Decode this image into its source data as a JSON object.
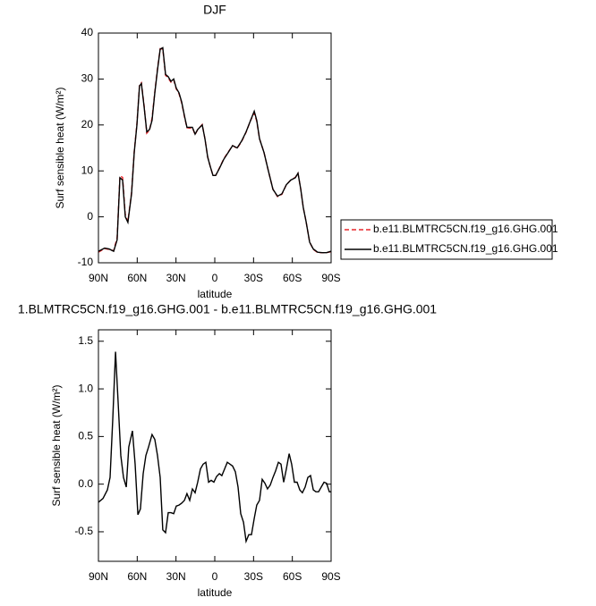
{
  "chart_data": [
    {
      "type": "line",
      "title": "DJF",
      "xlabel": "latitude",
      "ylabel": "Surf sensible heat (W/m²)",
      "xlim": [
        90,
        -90
      ],
      "ylim": [
        -10,
        40
      ],
      "xticks": [
        {
          "value": 90,
          "label": "90N"
        },
        {
          "value": 60,
          "label": "60N"
        },
        {
          "value": 30,
          "label": "30N"
        },
        0,
        {
          "value": -30,
          "label": "30S"
        },
        {
          "value": -60,
          "label": "60S"
        },
        {
          "value": -90,
          "label": "90S"
        }
      ],
      "yticks": [
        -10,
        0,
        10,
        20,
        30,
        40
      ],
      "x": [
        90,
        85.2,
        81.7,
        78.2,
        75.5,
        73.4,
        71.3,
        69.2,
        67.2,
        64.4,
        62.3,
        60.2,
        58.2,
        56.8,
        54.7,
        52.6,
        50.5,
        48.5,
        46.4,
        44.3,
        42.2,
        40.2,
        38.1,
        36,
        33.9,
        31.8,
        29.8,
        27.7,
        25.6,
        23.5,
        21.5,
        19.4,
        17.3,
        15.2,
        13.2,
        9.7,
        7.6,
        5.5,
        3.5,
        1.4,
        -0.7,
        -3.5,
        -6.9,
        -10.4,
        -13.8,
        -17.3,
        -20.8,
        -24.2,
        -27.7,
        -30.5,
        -32.5,
        -34.6,
        -38.1,
        -41.5,
        -45,
        -48.5,
        -51.9,
        -55.4,
        -58.8,
        -62.3,
        -64.4,
        -66.5,
        -68.5,
        -70.6,
        -73.4,
        -76.2,
        -79.6,
        -83.1,
        -86.5,
        -90
      ],
      "series": [
        {
          "name": "b.e11.BLMTRC5CN.f19_g16.GHG.001",
          "color": "#e8262c",
          "dash": true,
          "values": [
            -7.7,
            -6.9,
            -7.1,
            -7.4,
            -4.5,
            8.9,
            8.6,
            0.5,
            -1,
            5.3,
            14.2,
            20.3,
            28.8,
            29.2,
            24.3,
            18.2,
            18.9,
            21.5,
            27.2,
            32.3,
            36.6,
            36.5,
            30.8,
            30.2,
            29.3,
            29.8,
            27.8,
            26.8,
            24.8,
            21.8,
            19.4,
            19.3,
            19.4,
            17.9,
            19,
            20.1,
            17,
            13,
            11,
            9,
            9,
            10.6,
            12.6,
            14.1,
            15.5,
            14.9,
            16.4,
            18.4,
            21,
            22.6,
            20.8,
            17,
            14,
            10,
            6,
            4.4,
            4.9,
            7,
            8,
            8.6,
            9.5,
            6,
            2,
            -1,
            -5.5,
            -7.1,
            -7.8,
            -7.8,
            -7.8,
            -7.6
          ]
        },
        {
          "name": "b.e11.BLMTRC5CN.f19_g16.GHG.001",
          "color": "#000000",
          "dash": false,
          "values": [
            -7.5,
            -6.8,
            -7,
            -7.5,
            -5,
            8.5,
            8,
            0,
            -1.2,
            5,
            14,
            20,
            28.5,
            29,
            24,
            18.5,
            19,
            21,
            27,
            32,
            36.5,
            36.8,
            31,
            30.5,
            29.5,
            30,
            28,
            27,
            25,
            22,
            19.5,
            19.5,
            19.5,
            18,
            19,
            20,
            17,
            13,
            11,
            9,
            9,
            10.5,
            12.5,
            14,
            15.5,
            15,
            16.5,
            18.5,
            21,
            23,
            21,
            17,
            14,
            10,
            6,
            4.5,
            5,
            7,
            8,
            8.5,
            9.5,
            6,
            2,
            -1,
            -5.5,
            -7,
            -7.7,
            -7.8,
            -7.8,
            -7.5
          ]
        }
      ]
    },
    {
      "type": "line",
      "title": "1.BLMTRC5CN.f19_g16.GHG.001 - b.e11.BLMTRC5CN.f19_g16.GHG.001",
      "xlabel": "latitude",
      "ylabel": "Surf sensible heat (W/m²)",
      "xlim": [
        90,
        -90
      ],
      "ylim": [
        -0.81,
        1.62
      ],
      "xticks": [
        {
          "value": 90,
          "label": "90N"
        },
        {
          "value": 60,
          "label": "60N"
        },
        {
          "value": 30,
          "label": "30N"
        },
        0,
        {
          "value": -30,
          "label": "30S"
        },
        {
          "value": -60,
          "label": "60S"
        },
        {
          "value": -90,
          "label": "90S"
        }
      ],
      "yticks": [
        -0.5,
        {
          "value": 0,
          "label": "0.0"
        },
        0.5,
        {
          "value": 1,
          "label": "1.0"
        },
        1.5
      ],
      "x": [
        90,
        86.5,
        83.1,
        81.0,
        78.9,
        76.8,
        74.8,
        72.7,
        70.6,
        68.5,
        66.5,
        63.7,
        61.6,
        59.5,
        57.5,
        55.4,
        53.3,
        51.2,
        48.5,
        46.4,
        44.3,
        42.2,
        40.2,
        38.1,
        36.0,
        33.9,
        31.8,
        29.8,
        27.7,
        25.6,
        23.5,
        21.5,
        19.4,
        17.3,
        15.2,
        13.2,
        11.1,
        9.0,
        6.9,
        4.8,
        2.8,
        0.7,
        -1.4,
        -3.5,
        -5.5,
        -7.6,
        -9.7,
        -11.8,
        -13.8,
        -15.9,
        -18.0,
        -20.1,
        -22.2,
        -24.2,
        -26.3,
        -28.4,
        -30.5,
        -32.5,
        -34.6,
        -36.7,
        -38.8,
        -40.8,
        -42.9,
        -45.0,
        -47.1,
        -49.2,
        -51.2,
        -53.3,
        -55.4,
        -57.5,
        -59.5,
        -61.6,
        -63.7,
        -65.8,
        -67.8,
        -69.9,
        -72.0,
        -74.1,
        -76.2,
        -78.2,
        -80.3,
        -82.4,
        -84.5,
        -86.5,
        -88.6,
        -90
      ],
      "series": [
        {
          "color": "#000000",
          "dash": false,
          "values": [
            -0.19,
            -0.15,
            -0.06,
            0.07,
            0.68,
            1.39,
            0.86,
            0.3,
            0.07,
            -0.03,
            0.39,
            0.56,
            0.21,
            -0.32,
            -0.26,
            0.11,
            0.3,
            0.39,
            0.52,
            0.47,
            0.3,
            0.07,
            -0.48,
            -0.51,
            -0.3,
            -0.3,
            -0.31,
            -0.23,
            -0.22,
            -0.2,
            -0.17,
            -0.1,
            -0.17,
            -0.05,
            -0.09,
            0.02,
            0.16,
            0.21,
            0.23,
            0.02,
            0.04,
            0.02,
            0.08,
            0.11,
            0.09,
            0.16,
            0.23,
            0.21,
            0.19,
            0.13,
            -0.03,
            -0.31,
            -0.4,
            -0.6,
            -0.53,
            -0.53,
            -0.36,
            -0.22,
            -0.17,
            0.05,
            0.01,
            -0.05,
            -0.01,
            0.07,
            0.14,
            0.23,
            0.21,
            0.02,
            0.16,
            0.32,
            0.21,
            0.02,
            0.02,
            -0.06,
            -0.09,
            -0.03,
            0.07,
            0.09,
            -0.06,
            -0.08,
            -0.08,
            -0.03,
            0.02,
            0.01,
            -0.08,
            -0.08
          ]
        }
      ]
    }
  ]
}
